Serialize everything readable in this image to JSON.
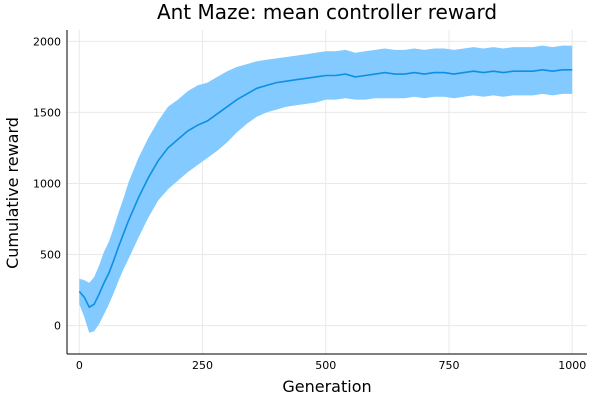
{
  "chart_data": {
    "type": "line",
    "title": "Ant Maze: mean controller reward",
    "xlabel": "Generation",
    "ylabel": "Cumulative reward",
    "xlim": [
      -25,
      1030
    ],
    "ylim": [
      -200,
      2080
    ],
    "xticks": [
      0,
      250,
      500,
      750,
      1000
    ],
    "yticks": [
      0,
      500,
      1000,
      1500,
      2000
    ],
    "grid": true,
    "legend": "none",
    "line_color": "#0f8fe3",
    "band_color": "#82caff",
    "series": [
      {
        "x": [
          0,
          10,
          20,
          30,
          40,
          50,
          60,
          70,
          80,
          90,
          100,
          120,
          140,
          160,
          180,
          200,
          220,
          240,
          260,
          280,
          300,
          320,
          340,
          360,
          380,
          400,
          420,
          440,
          460,
          480,
          500,
          520,
          540,
          560,
          580,
          600,
          620,
          640,
          660,
          680,
          700,
          720,
          740,
          760,
          780,
          800,
          820,
          840,
          860,
          880,
          900,
          920,
          940,
          960,
          980,
          1000
        ],
        "mean": [
          240,
          200,
          130,
          150,
          220,
          300,
          370,
          460,
          560,
          650,
          740,
          900,
          1040,
          1160,
          1250,
          1310,
          1370,
          1410,
          1440,
          1490,
          1540,
          1590,
          1630,
          1670,
          1690,
          1710,
          1720,
          1730,
          1740,
          1750,
          1760,
          1760,
          1770,
          1750,
          1760,
          1770,
          1780,
          1770,
          1770,
          1780,
          1770,
          1780,
          1780,
          1770,
          1780,
          1790,
          1780,
          1790,
          1780,
          1790,
          1790,
          1790,
          1800,
          1790,
          1800,
          1800
        ],
        "lower": [
          150,
          60,
          -50,
          -40,
          10,
          80,
          150,
          230,
          320,
          400,
          470,
          620,
          760,
          880,
          960,
          1020,
          1080,
          1130,
          1180,
          1230,
          1290,
          1360,
          1420,
          1470,
          1500,
          1520,
          1540,
          1550,
          1560,
          1570,
          1590,
          1590,
          1600,
          1590,
          1590,
          1600,
          1600,
          1600,
          1600,
          1610,
          1600,
          1610,
          1610,
          1600,
          1610,
          1620,
          1610,
          1620,
          1610,
          1620,
          1620,
          1620,
          1630,
          1620,
          1630,
          1630
        ],
        "upper": [
          330,
          320,
          300,
          340,
          420,
          520,
          590,
          690,
          800,
          900,
          1010,
          1180,
          1320,
          1440,
          1540,
          1590,
          1650,
          1690,
          1710,
          1750,
          1790,
          1820,
          1840,
          1860,
          1870,
          1880,
          1890,
          1900,
          1910,
          1920,
          1930,
          1930,
          1940,
          1920,
          1930,
          1940,
          1950,
          1940,
          1940,
          1950,
          1940,
          1950,
          1950,
          1940,
          1950,
          1960,
          1950,
          1960,
          1950,
          1960,
          1960,
          1960,
          1970,
          1960,
          1970,
          1970
        ]
      }
    ]
  }
}
